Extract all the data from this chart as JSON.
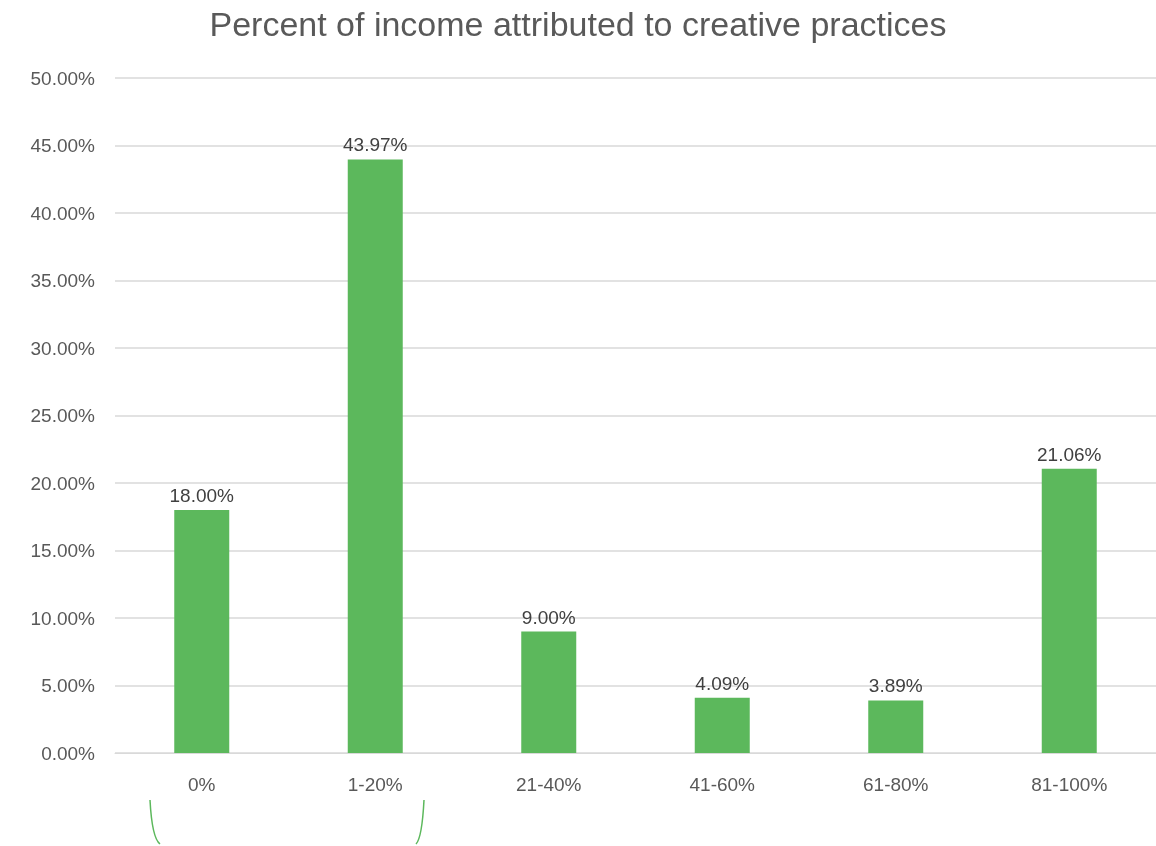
{
  "chart_data": {
    "type": "bar",
    "title": "Percent of income attributed to creative practices",
    "categories": [
      "0%",
      "1-20%",
      "21-40%",
      "41-60%",
      "61-80%",
      "81-100%"
    ],
    "values": [
      18.0,
      43.97,
      9.0,
      4.09,
      3.89,
      21.06
    ],
    "value_labels": [
      "18.00%",
      "43.97%",
      "9.00%",
      "4.09%",
      "3.89%",
      "21.06%"
    ],
    "color": "#5cb85c",
    "ylim": [
      0,
      50
    ],
    "yticks": [
      {
        "value": 0,
        "label": "0.00%"
      },
      {
        "value": 5,
        "label": "5.00%"
      },
      {
        "value": 10,
        "label": "10.00%"
      },
      {
        "value": 15,
        "label": "15.00%"
      },
      {
        "value": 20,
        "label": "20.00%"
      },
      {
        "value": 25,
        "label": "25.00%"
      },
      {
        "value": 30,
        "label": "30.00%"
      },
      {
        "value": 35,
        "label": "35.00%"
      },
      {
        "value": 40,
        "label": "40.00%"
      },
      {
        "value": 45,
        "label": "45.00%"
      },
      {
        "value": 50,
        "label": "50.00%"
      }
    ],
    "grid": "y"
  }
}
